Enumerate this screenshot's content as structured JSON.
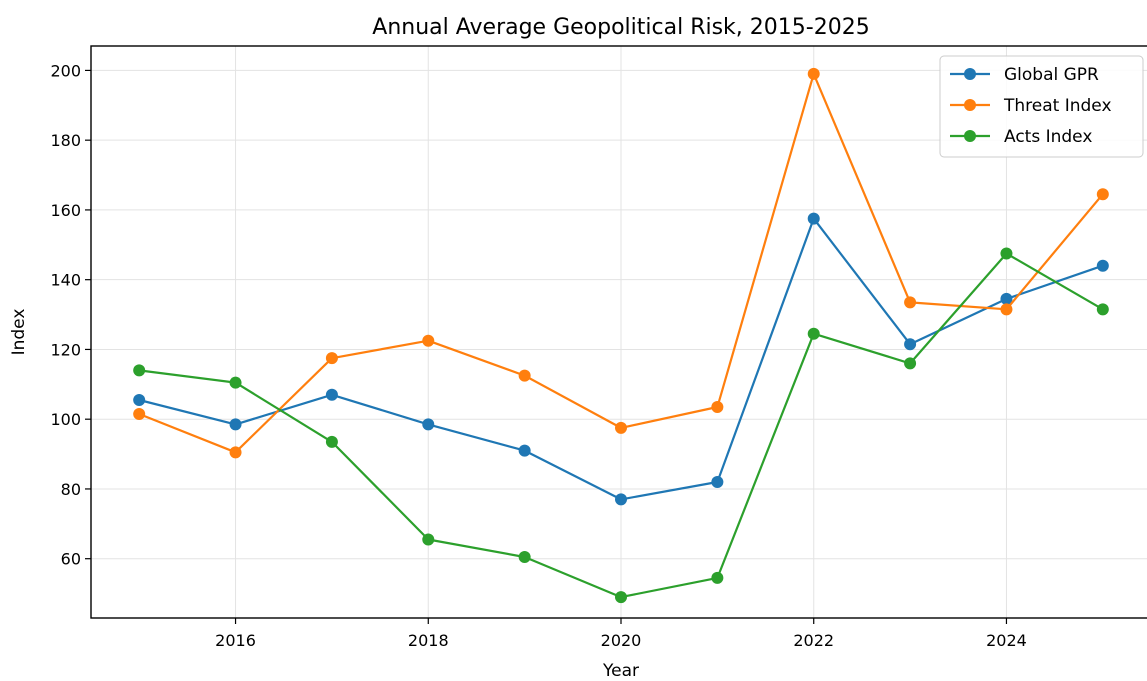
{
  "chart_data": {
    "type": "line",
    "title": "Annual Average Geopolitical Risk, 2015-2025",
    "xlabel": "Year",
    "ylabel": "Index",
    "x": [
      2015,
      2016,
      2017,
      2018,
      2019,
      2020,
      2021,
      2022,
      2023,
      2024,
      2025
    ],
    "xlim": [
      2014.5,
      2025.5
    ],
    "ylim": [
      43,
      207
    ],
    "x_ticks": [
      2016,
      2018,
      2020,
      2022,
      2024
    ],
    "y_ticks": [
      60,
      80,
      100,
      120,
      140,
      160,
      180,
      200
    ],
    "grid": true,
    "legend_position": "top-right",
    "series": [
      {
        "name": "Global GPR",
        "color": "#1f77b4",
        "values": [
          105.5,
          98.5,
          107,
          98.5,
          91,
          77,
          82,
          157.5,
          121.5,
          134.5,
          144
        ]
      },
      {
        "name": "Threat Index",
        "color": "#ff7f0e",
        "values": [
          101.5,
          90.5,
          117.5,
          122.5,
          112.5,
          97.5,
          103.5,
          199,
          133.5,
          131.5,
          164.5
        ]
      },
      {
        "name": "Acts Index",
        "color": "#2ca02c",
        "values": [
          114,
          110.5,
          93.5,
          65.5,
          60.5,
          49,
          54.5,
          124.5,
          116,
          147.5,
          131.5
        ]
      }
    ]
  }
}
